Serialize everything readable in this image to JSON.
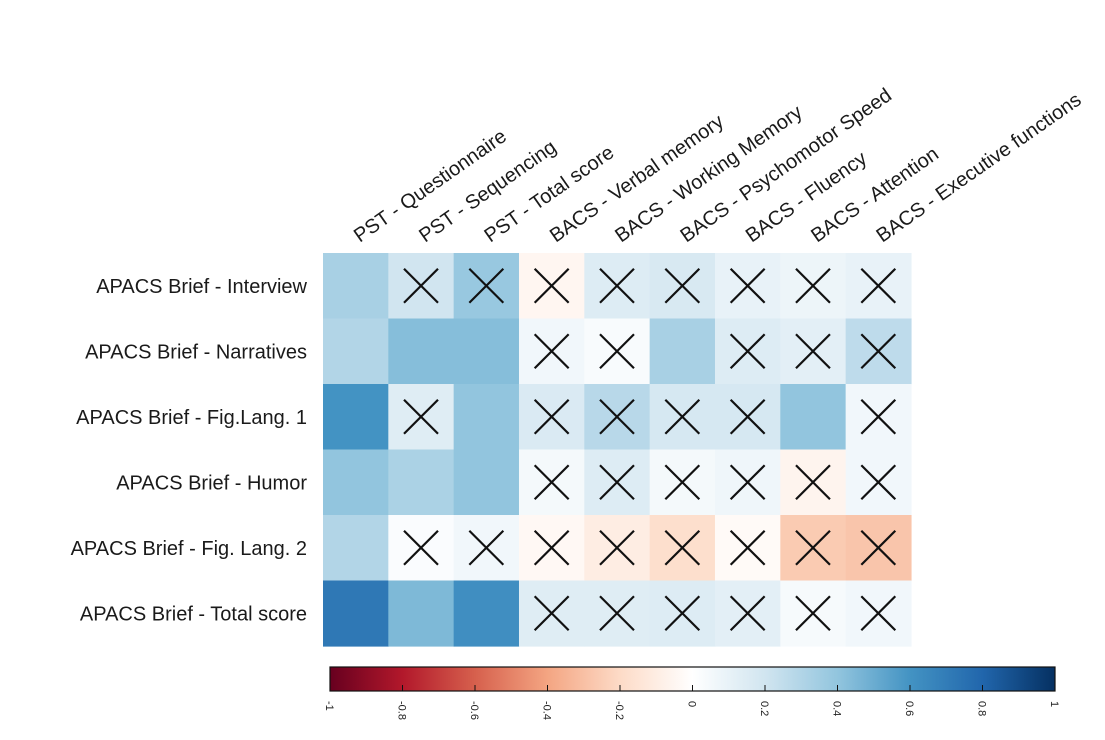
{
  "chart_data": {
    "type": "heatmap",
    "rows": [
      "APACS Brief - Interview",
      "APACS Brief - Narratives",
      "APACS Brief - Fig.Lang. 1",
      "APACS Brief - Humor",
      "APACS Brief - Fig. Lang. 2",
      "APACS Brief - Total score"
    ],
    "columns": [
      "PST - Questionnaire",
      "PST - Sequencing",
      "PST - Total score",
      "BACS - Verbal memory",
      "BACS - Working Memory",
      "BACS - Psychomotor Speed",
      "BACS - Fluency",
      "BACS - Attention",
      "BACS - Executive functions"
    ],
    "values": [
      [
        0.33,
        0.2,
        0.38,
        -0.05,
        0.15,
        0.17,
        0.1,
        0.08,
        0.1
      ],
      [
        0.3,
        0.43,
        0.43,
        0.06,
        0.03,
        0.33,
        0.15,
        0.12,
        0.26
      ],
      [
        0.6,
        0.14,
        0.4,
        0.16,
        0.28,
        0.18,
        0.18,
        0.4,
        0.06
      ],
      [
        0.4,
        0.32,
        0.4,
        0.05,
        0.15,
        0.05,
        0.07,
        -0.06,
        0.06
      ],
      [
        0.3,
        0.02,
        0.06,
        -0.04,
        -0.1,
        -0.18,
        -0.03,
        -0.26,
        -0.28
      ],
      [
        0.72,
        0.45,
        0.62,
        0.14,
        0.14,
        0.15,
        0.12,
        0.04,
        0.06
      ]
    ],
    "nonsignificant": [
      [
        false,
        true,
        true,
        true,
        true,
        true,
        true,
        true,
        true
      ],
      [
        false,
        false,
        false,
        true,
        true,
        false,
        true,
        true,
        true
      ],
      [
        false,
        true,
        false,
        true,
        true,
        true,
        true,
        false,
        true
      ],
      [
        false,
        false,
        false,
        true,
        true,
        true,
        true,
        true,
        true
      ],
      [
        false,
        true,
        true,
        true,
        true,
        true,
        true,
        true,
        true
      ],
      [
        false,
        false,
        false,
        true,
        true,
        true,
        true,
        true,
        true
      ]
    ],
    "colorbar": {
      "ticks": [
        "-1",
        "-0.8",
        "-0.6",
        "-0.4",
        "-0.2",
        "0",
        "0.2",
        "0.4",
        "0.6",
        "0.8",
        "1"
      ],
      "range": [
        -1,
        1
      ],
      "palette": [
        "#67001f",
        "#b2182b",
        "#d6604d",
        "#f4a582",
        "#fddbc7",
        "#ffffff",
        "#d1e5f0",
        "#92c5de",
        "#4393c3",
        "#2166ac",
        "#053061"
      ]
    },
    "xlabel": "",
    "ylabel": "",
    "title": ""
  }
}
